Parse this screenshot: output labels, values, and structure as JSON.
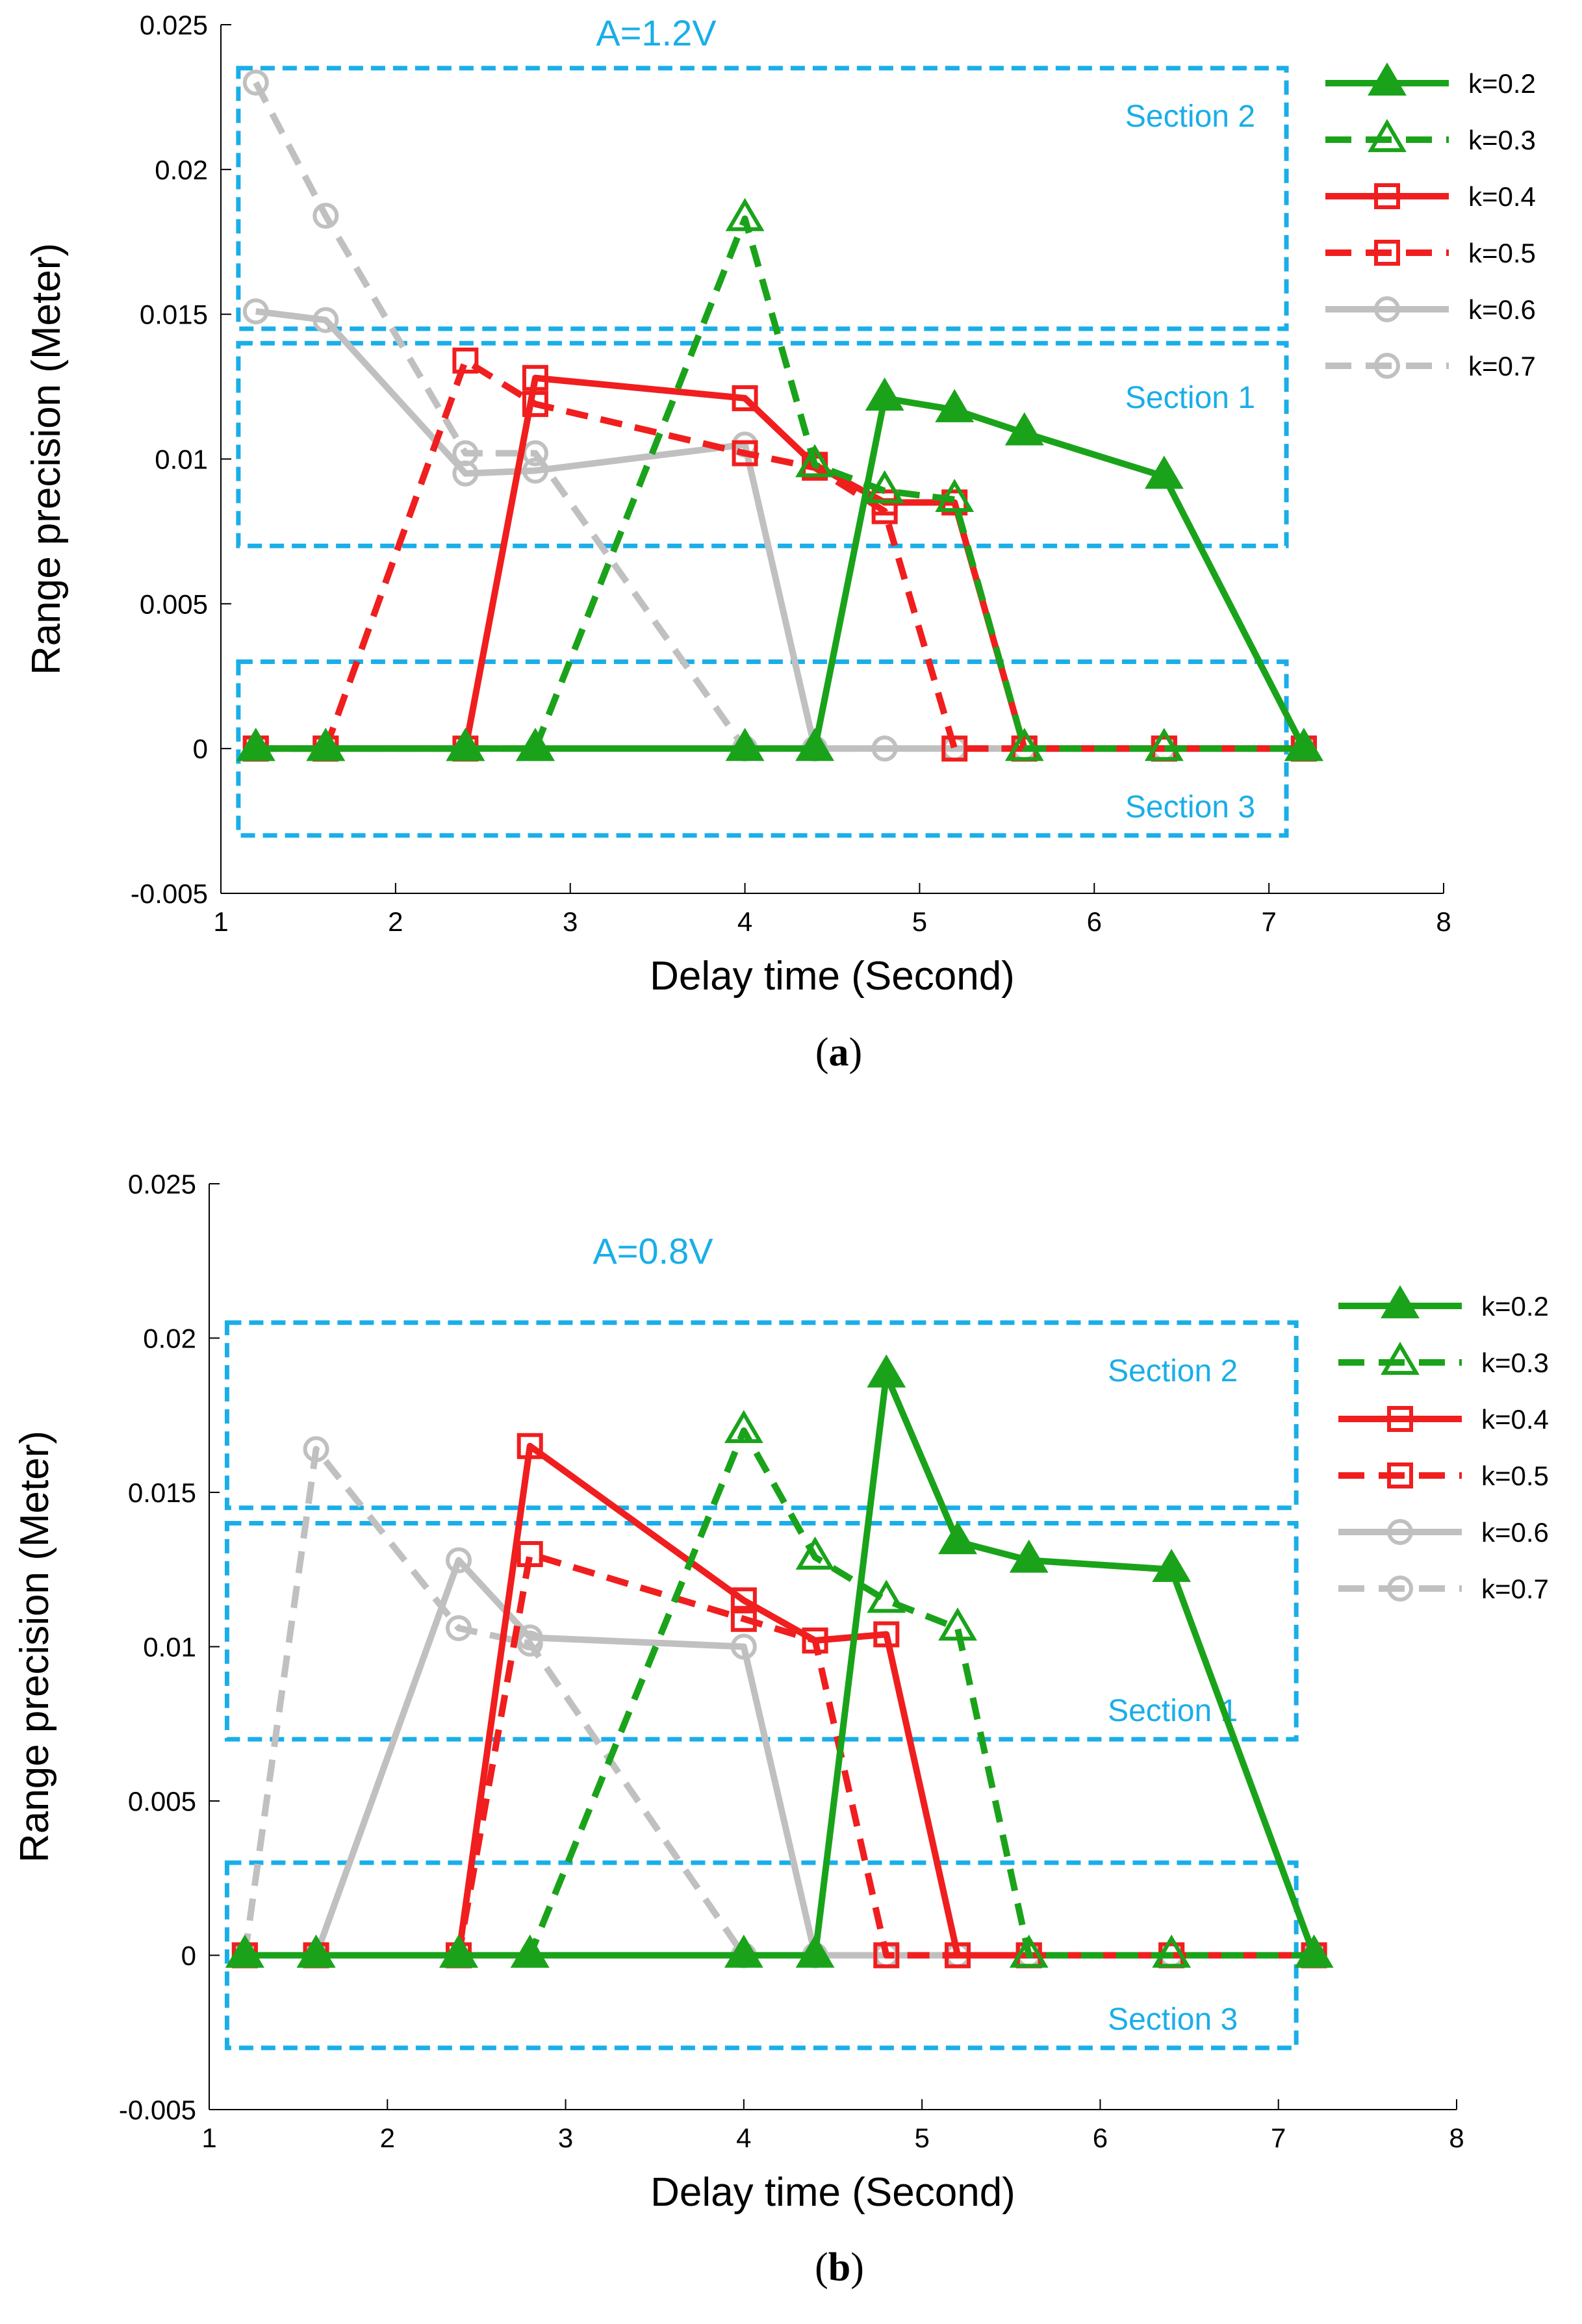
{
  "chart_data": [
    {
      "type": "line",
      "caption": "a",
      "annotation": "A=1.2V",
      "xlabel": "Delay time (Second)",
      "ylabel": "Range precision (Meter)",
      "xlim": [
        1,
        8
      ],
      "ylim": [
        -0.005,
        0.025
      ],
      "xticks": [
        "1",
        "2",
        "3",
        "4",
        "5",
        "6",
        "7",
        "8"
      ],
      "yticks": [
        "-0.005",
        "0",
        "0.005",
        "0.01",
        "0.015",
        "0.02",
        "0.025"
      ],
      "legend_position": "top-right",
      "sections": [
        {
          "label": "Section 2",
          "x": [
            1.1,
            7.1
          ],
          "y": [
            0.0145,
            0.0235
          ]
        },
        {
          "label": "Section 1",
          "x": [
            1.1,
            7.1
          ],
          "y": [
            0.007,
            0.014
          ]
        },
        {
          "label": "Section 3",
          "x": [
            1.1,
            7.1
          ],
          "y": [
            -0.003,
            0.003
          ]
        }
      ],
      "series": [
        {
          "name": "k=0.2",
          "style": "solid",
          "color": "#1aa31a",
          "marker": "triangle-filled",
          "x": [
            1.2,
            1.6,
            2.4,
            2.8,
            4.0,
            4.4,
            4.8,
            5.2,
            5.6,
            6.4,
            7.2
          ],
          "y": [
            0,
            0,
            0,
            0,
            0,
            0,
            0.0121,
            0.0117,
            0.0109,
            0.0094,
            0
          ]
        },
        {
          "name": "k=0.3",
          "style": "dashed",
          "color": "#1aa31a",
          "marker": "triangle-open",
          "x": [
            1.2,
            1.6,
            2.4,
            2.8,
            4.0,
            4.4,
            4.8,
            5.2,
            5.6,
            6.4,
            7.2
          ],
          "y": [
            0,
            0,
            0,
            0,
            0.0183,
            0.0098,
            0.0089,
            0.0086,
            0,
            0,
            0
          ]
        },
        {
          "name": "k=0.4",
          "style": "solid",
          "color": "#f01e1e",
          "marker": "square-open",
          "x": [
            1.2,
            1.6,
            2.4,
            2.8,
            4.0,
            4.4,
            4.8,
            5.2,
            5.6,
            6.4,
            7.2
          ],
          "y": [
            0,
            0,
            0,
            0.0128,
            0.0121,
            0.0098,
            0.0085,
            0.0085,
            0,
            0,
            0
          ]
        },
        {
          "name": "k=0.5",
          "style": "dashed",
          "color": "#f01e1e",
          "marker": "square-open",
          "x": [
            1.2,
            1.6,
            2.4,
            2.8,
            4.0,
            4.4,
            4.8,
            5.2,
            5.6,
            6.4,
            7.2
          ],
          "y": [
            0,
            0,
            0.0134,
            0.0119,
            0.0102,
            0.0097,
            0.0082,
            0,
            0,
            0,
            0
          ]
        },
        {
          "name": "k=0.6",
          "style": "solid",
          "color": "#c0c0c0",
          "marker": "circle-open",
          "x": [
            1.2,
            1.6,
            2.4,
            2.8,
            4.0,
            4.4,
            4.8,
            5.2,
            5.6,
            6.4,
            7.2
          ],
          "y": [
            0.0151,
            0.0148,
            0.0095,
            0.0096,
            0.0105,
            0,
            0,
            0,
            0,
            0,
            0
          ]
        },
        {
          "name": "k=0.7",
          "style": "dashed",
          "color": "#c0c0c0",
          "marker": "circle-open",
          "x": [
            1.2,
            1.6,
            2.4,
            2.8,
            4.0,
            4.4,
            4.8,
            5.2,
            5.6,
            6.4,
            7.2
          ],
          "y": [
            0.023,
            0.0184,
            0.0102,
            0.0102,
            0,
            0,
            0,
            0,
            0,
            0,
            0
          ]
        }
      ]
    },
    {
      "type": "line",
      "caption": "b",
      "annotation": "A=0.8V",
      "xlabel": "Delay time (Second)",
      "ylabel": "Range precision (Meter)",
      "xlim": [
        1,
        8
      ],
      "ylim": [
        -0.005,
        0.025
      ],
      "xticks": [
        "1",
        "2",
        "3",
        "4",
        "5",
        "6",
        "7",
        "8"
      ],
      "yticks": [
        "-0.005",
        "0",
        "0.005",
        "0.01",
        "0.015",
        "0.02",
        "0.025"
      ],
      "legend_position": "top-right",
      "sections": [
        {
          "label": "Section 2",
          "x": [
            1.1,
            7.1
          ],
          "y": [
            0.0145,
            0.0205
          ]
        },
        {
          "label": "Section 1",
          "x": [
            1.1,
            7.1
          ],
          "y": [
            0.007,
            0.014
          ]
        },
        {
          "label": "Section 3",
          "x": [
            1.1,
            7.1
          ],
          "y": [
            -0.003,
            0.003
          ]
        }
      ],
      "series": [
        {
          "name": "k=0.2",
          "style": "solid",
          "color": "#1aa31a",
          "marker": "triangle-filled",
          "x": [
            1.2,
            1.6,
            2.4,
            2.8,
            4.0,
            4.4,
            4.8,
            5.2,
            5.6,
            6.4,
            7.2
          ],
          "y": [
            0,
            0,
            0,
            0,
            0,
            0,
            0.0188,
            0.0134,
            0.0128,
            0.0125,
            0
          ]
        },
        {
          "name": "k=0.3",
          "style": "dashed",
          "color": "#1aa31a",
          "marker": "triangle-open",
          "x": [
            1.2,
            1.6,
            2.4,
            2.8,
            4.0,
            4.4,
            4.8,
            5.2,
            5.6,
            6.4,
            7.2
          ],
          "y": [
            0,
            0,
            0,
            0,
            0.017,
            0.0129,
            0.0115,
            0.0106,
            0,
            0,
            0
          ]
        },
        {
          "name": "k=0.4",
          "style": "solid",
          "color": "#f01e1e",
          "marker": "square-open",
          "x": [
            1.2,
            1.6,
            2.4,
            2.8,
            4.0,
            4.4,
            4.8,
            5.2,
            5.6,
            6.4,
            7.2
          ],
          "y": [
            0,
            0,
            0,
            0.0165,
            0.0115,
            0.0102,
            0.0104,
            0,
            0,
            0,
            0
          ]
        },
        {
          "name": "k=0.5",
          "style": "dashed",
          "color": "#f01e1e",
          "marker": "square-open",
          "x": [
            1.2,
            1.6,
            2.4,
            2.8,
            4.0,
            4.4,
            4.8,
            5.2,
            5.6,
            6.4,
            7.2
          ],
          "y": [
            0,
            0,
            0,
            0.013,
            0.0109,
            0.0102,
            0,
            0,
            0,
            0,
            0
          ]
        },
        {
          "name": "k=0.6",
          "style": "solid",
          "color": "#c0c0c0",
          "marker": "circle-open",
          "x": [
            1.2,
            1.6,
            2.4,
            2.8,
            4.0,
            4.4,
            4.8,
            5.2,
            5.6,
            6.4,
            7.2
          ],
          "y": [
            0,
            0,
            0.0128,
            0.0103,
            0.01,
            0,
            0,
            0,
            0,
            0,
            0
          ]
        },
        {
          "name": "k=0.7",
          "style": "dashed",
          "color": "#c0c0c0",
          "marker": "circle-open",
          "x": [
            1.2,
            1.6,
            2.4,
            2.8,
            4.0,
            4.4,
            4.8,
            5.2,
            5.6,
            6.4,
            7.2
          ],
          "y": [
            0,
            0.0164,
            0.0106,
            0.0101,
            0,
            0,
            0,
            0,
            0,
            0,
            0
          ]
        }
      ]
    }
  ]
}
